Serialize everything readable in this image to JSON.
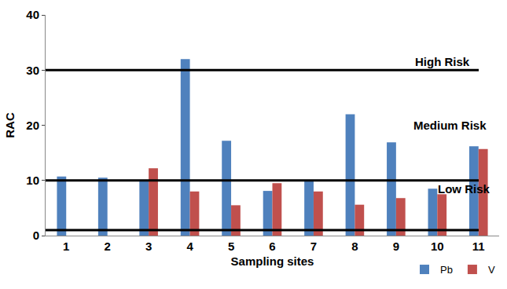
{
  "chart_data": {
    "type": "bar",
    "x_label": "Sampling sites",
    "y_label": "RAC",
    "categories": [
      "1",
      "2",
      "3",
      "4",
      "5",
      "6",
      "7",
      "8",
      "9",
      "10",
      "11"
    ],
    "series": [
      {
        "name": "Pb",
        "color": "#4f81bd",
        "values": [
          10.7,
          10.5,
          10,
          32,
          17.2,
          8.1,
          10,
          22,
          16.9,
          8.5,
          16.2
        ]
      },
      {
        "name": "V",
        "color": "#c0504d",
        "values": [
          null,
          null,
          12.2,
          8,
          5.5,
          9.5,
          8,
          5.6,
          6.8,
          7.5,
          15.7
        ]
      }
    ],
    "risk_zones": [
      {
        "label": "High Risk",
        "from": 30,
        "to": null
      },
      {
        "label": "Medium Risk",
        "from": 10,
        "to": 30
      },
      {
        "label": "Low Risk",
        "from": 1,
        "to": 10
      }
    ],
    "ylim": [
      0,
      40
    ],
    "yticks": [
      0,
      10,
      20,
      30,
      40
    ],
    "grid": false,
    "legend": "bottom right"
  }
}
